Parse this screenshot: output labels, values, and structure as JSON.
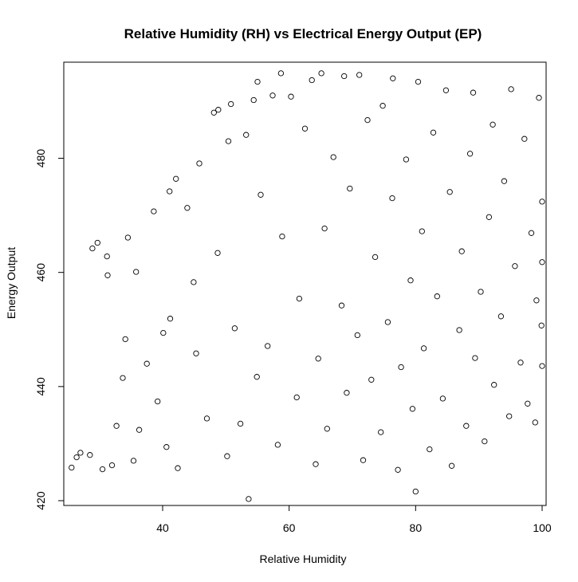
{
  "chart_data": {
    "type": "scatter",
    "title": "Relative Humidity (RH) vs Electrical Energy Output (EP)",
    "xlabel": "Relative Humidity",
    "ylabel": "Energy Output",
    "xlim": [
      25,
      100
    ],
    "ylim": [
      420,
      496
    ],
    "xticks": [
      40,
      60,
      80,
      100
    ],
    "yticks": [
      420,
      440,
      460,
      480
    ],
    "grid": false,
    "legend": "none",
    "marker": "open-circle",
    "color": "#000000",
    "points": [
      [
        25.6,
        425.8
      ],
      [
        26.4,
        427.6
      ],
      [
        27.0,
        428.4
      ],
      [
        28.5,
        428.0
      ],
      [
        28.9,
        464.2
      ],
      [
        29.7,
        465.2
      ],
      [
        30.5,
        425.5
      ],
      [
        31.2,
        462.8
      ],
      [
        31.3,
        459.5
      ],
      [
        32.0,
        426.2
      ],
      [
        32.7,
        433.1
      ],
      [
        33.7,
        441.5
      ],
      [
        34.1,
        448.3
      ],
      [
        34.5,
        466.1
      ],
      [
        35.4,
        427.0
      ],
      [
        35.8,
        460.1
      ],
      [
        36.3,
        432.4
      ],
      [
        37.5,
        444.0
      ],
      [
        38.6,
        470.7
      ],
      [
        39.2,
        437.4
      ],
      [
        40.1,
        449.4
      ],
      [
        40.6,
        429.4
      ],
      [
        41.1,
        474.2
      ],
      [
        41.2,
        451.9
      ],
      [
        42.1,
        476.4
      ],
      [
        42.4,
        425.7
      ],
      [
        43.9,
        471.3
      ],
      [
        44.9,
        458.3
      ],
      [
        45.3,
        445.8
      ],
      [
        45.8,
        479.1
      ],
      [
        47.0,
        434.4
      ],
      [
        48.1,
        488.0
      ],
      [
        48.7,
        463.4
      ],
      [
        48.8,
        488.5
      ],
      [
        50.2,
        427.8
      ],
      [
        50.4,
        483.0
      ],
      [
        50.8,
        489.5
      ],
      [
        51.4,
        450.2
      ],
      [
        52.3,
        433.5
      ],
      [
        53.2,
        484.1
      ],
      [
        53.6,
        420.3
      ],
      [
        54.4,
        490.2
      ],
      [
        54.9,
        441.7
      ],
      [
        55.0,
        493.4
      ],
      [
        55.5,
        473.6
      ],
      [
        56.6,
        447.1
      ],
      [
        57.4,
        491.0
      ],
      [
        58.2,
        429.8
      ],
      [
        58.7,
        494.9
      ],
      [
        58.9,
        466.3
      ],
      [
        60.3,
        490.8
      ],
      [
        61.2,
        438.1
      ],
      [
        61.6,
        455.4
      ],
      [
        62.5,
        485.2
      ],
      [
        63.6,
        493.7
      ],
      [
        64.2,
        426.4
      ],
      [
        64.6,
        444.9
      ],
      [
        65.1,
        494.9
      ],
      [
        65.6,
        467.7
      ],
      [
        66.0,
        432.6
      ],
      [
        67.0,
        480.2
      ],
      [
        68.3,
        454.2
      ],
      [
        68.7,
        494.4
      ],
      [
        69.1,
        438.9
      ],
      [
        69.6,
        474.7
      ],
      [
        70.8,
        449.0
      ],
      [
        71.1,
        494.6
      ],
      [
        71.7,
        427.1
      ],
      [
        72.4,
        486.7
      ],
      [
        73.0,
        441.2
      ],
      [
        73.6,
        462.7
      ],
      [
        74.5,
        432.0
      ],
      [
        74.8,
        489.2
      ],
      [
        75.6,
        451.3
      ],
      [
        76.3,
        473.0
      ],
      [
        76.4,
        494.0
      ],
      [
        77.2,
        425.4
      ],
      [
        77.7,
        443.4
      ],
      [
        78.5,
        479.8
      ],
      [
        79.2,
        458.6
      ],
      [
        79.5,
        436.1
      ],
      [
        80.0,
        421.6
      ],
      [
        80.4,
        493.4
      ],
      [
        81.0,
        467.2
      ],
      [
        81.3,
        446.7
      ],
      [
        82.2,
        429.0
      ],
      [
        82.8,
        484.5
      ],
      [
        83.4,
        455.8
      ],
      [
        84.3,
        437.9
      ],
      [
        84.8,
        491.9
      ],
      [
        85.4,
        474.1
      ],
      [
        85.7,
        426.1
      ],
      [
        86.9,
        449.9
      ],
      [
        87.3,
        463.7
      ],
      [
        88.0,
        433.1
      ],
      [
        88.6,
        480.8
      ],
      [
        89.1,
        491.5
      ],
      [
        89.4,
        445.0
      ],
      [
        90.3,
        456.6
      ],
      [
        90.9,
        430.4
      ],
      [
        91.6,
        469.7
      ],
      [
        92.2,
        485.9
      ],
      [
        92.4,
        440.3
      ],
      [
        93.5,
        452.3
      ],
      [
        94.0,
        476.0
      ],
      [
        94.8,
        434.8
      ],
      [
        95.1,
        492.1
      ],
      [
        95.7,
        461.1
      ],
      [
        96.6,
        444.2
      ],
      [
        97.2,
        483.4
      ],
      [
        97.7,
        437.0
      ],
      [
        98.3,
        466.9
      ],
      [
        98.9,
        433.7
      ],
      [
        99.1,
        455.1
      ],
      [
        99.5,
        490.6
      ],
      [
        99.9,
        450.7
      ],
      [
        100.0,
        472.4
      ],
      [
        100.0,
        443.6
      ],
      [
        100.0,
        461.8
      ]
    ]
  }
}
